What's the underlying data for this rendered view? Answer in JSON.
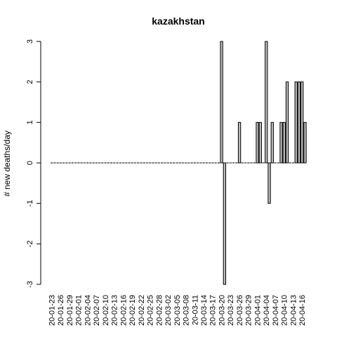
{
  "chart_data": {
    "type": "bar",
    "title": "kazakhstan",
    "xlabel": "",
    "ylabel": "# new deaths/day",
    "ylim": [
      -3,
      3
    ],
    "yticks": [
      -3,
      -2,
      -1,
      0,
      1,
      2,
      3
    ],
    "start_date": "2020-01-23",
    "categories": [
      "20-01-23",
      "20-01-24",
      "20-01-25",
      "20-01-26",
      "20-01-27",
      "20-01-28",
      "20-01-29",
      "20-01-30",
      "20-01-31",
      "20-02-01",
      "20-02-02",
      "20-02-03",
      "20-02-04",
      "20-02-05",
      "20-02-06",
      "20-02-07",
      "20-02-08",
      "20-02-09",
      "20-02-10",
      "20-02-11",
      "20-02-12",
      "20-02-13",
      "20-02-14",
      "20-02-15",
      "20-02-16",
      "20-02-17",
      "20-02-18",
      "20-02-19",
      "20-02-20",
      "20-02-21",
      "20-02-22",
      "20-02-23",
      "20-02-24",
      "20-02-25",
      "20-02-26",
      "20-02-27",
      "20-02-28",
      "20-02-29",
      "20-03-01",
      "20-03-02",
      "20-03-03",
      "20-03-04",
      "20-03-05",
      "20-03-06",
      "20-03-07",
      "20-03-08",
      "20-03-09",
      "20-03-10",
      "20-03-11",
      "20-03-12",
      "20-03-13",
      "20-03-14",
      "20-03-15",
      "20-03-16",
      "20-03-17",
      "20-03-18",
      "20-03-19",
      "20-03-20",
      "20-03-21",
      "20-03-22",
      "20-03-23",
      "20-03-24",
      "20-03-25",
      "20-03-26",
      "20-03-27",
      "20-03-28",
      "20-03-29",
      "20-03-30",
      "20-03-31",
      "20-04-01",
      "20-04-02",
      "20-04-03",
      "20-04-04",
      "20-04-05",
      "20-04-06",
      "20-04-07",
      "20-04-08",
      "20-04-09",
      "20-04-10",
      "20-04-11",
      "20-04-12",
      "20-04-13",
      "20-04-14",
      "20-04-15",
      "20-04-16",
      "20-04-17"
    ],
    "values": [
      0,
      0,
      0,
      0,
      0,
      0,
      0,
      0,
      0,
      0,
      0,
      0,
      0,
      0,
      0,
      0,
      0,
      0,
      0,
      0,
      0,
      0,
      0,
      0,
      0,
      0,
      0,
      0,
      0,
      0,
      0,
      0,
      0,
      0,
      0,
      0,
      0,
      0,
      0,
      0,
      0,
      0,
      0,
      0,
      0,
      0,
      0,
      0,
      0,
      0,
      0,
      0,
      0,
      0,
      0,
      0,
      0,
      3,
      -3,
      0,
      0,
      0,
      0,
      1,
      0,
      0,
      0,
      0,
      0,
      1,
      1,
      0,
      3,
      -1,
      1,
      0,
      0,
      1,
      1,
      2,
      0,
      0,
      2,
      2,
      2,
      1
    ],
    "tick_labels": [
      "20-01-23",
      "20-01-26",
      "20-01-29",
      "20-02-01",
      "20-02-04",
      "20-02-07",
      "20-02-10",
      "20-02-13",
      "20-02-16",
      "20-02-19",
      "20-02-22",
      "20-02-25",
      "20-02-28",
      "20-03-02",
      "20-03-05",
      "20-03-08",
      "20-03-11",
      "20-03-14",
      "20-03-17",
      "20-03-20",
      "20-03-23",
      "20-03-26",
      "20-03-29",
      "20-04-01",
      "20-04-04",
      "20-04-07",
      "20-04-10",
      "20-04-13",
      "20-04-16"
    ],
    "grid": false,
    "legend": "none"
  }
}
